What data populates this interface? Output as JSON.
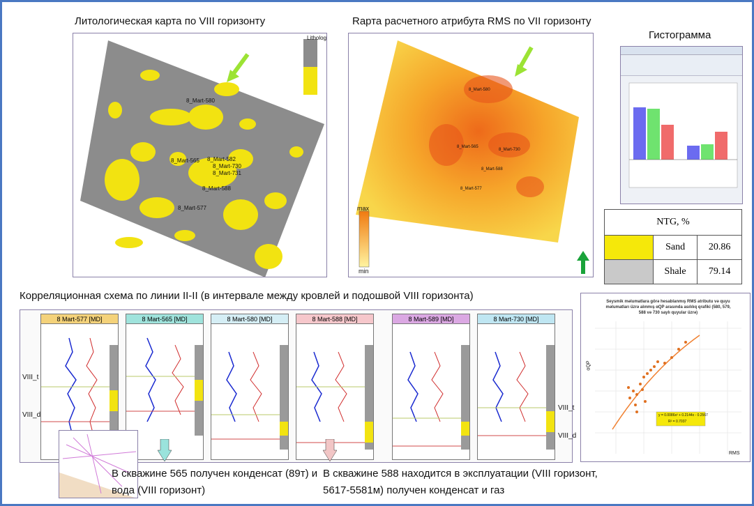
{
  "titles": {
    "lith_map": "Литологическая карта по VIII горизонту",
    "rms_map": "Rарта расчетного атрибута RMS по VII горизонту",
    "histogram": "Гистограмма",
    "correlation": "Корреляционная схема по линии II-II (в интервале между кровлей и подошвой VIII горизонта)"
  },
  "lith_map": {
    "legend_title": "Lithology",
    "wells": [
      "8_Mart-580",
      "8_Mart-565",
      "8_Mart-582",
      "8_Mart-730",
      "8_Mart-731",
      "8_Mart-588",
      "8_Mart-577"
    ]
  },
  "rms_map": {
    "colorbar_max": "max",
    "colorbar_min": "min",
    "wells": [
      "8_Mart-580",
      "8_Mart-565",
      "8_Mart-730",
      "8_Mart-588",
      "8_Mart-577"
    ]
  },
  "ntg_table": {
    "header": "NTG, %",
    "rows": [
      {
        "label": "Sand",
        "value": "20.86",
        "color": "#f5e80a"
      },
      {
        "label": "Shale",
        "value": "79.14",
        "color": "#c9c9c9"
      }
    ]
  },
  "wells_panel": [
    {
      "name": "8 Mart-577 [MD]",
      "color": "#f4d27a"
    },
    {
      "name": "8 Mart-565 [MD]",
      "color": "#9fe3dc"
    },
    {
      "name": "8 Mart-580 [MD]",
      "color": "#d5eef5"
    },
    {
      "name": "8 Mart-588 [MD]",
      "color": "#f6c7cb"
    },
    {
      "name": "8 Mart-589 [MD]",
      "color": "#dba8e3"
    },
    {
      "name": "8 Mart-730 [MD]",
      "color": "#bfe6f2"
    }
  ],
  "horizon_labels": {
    "top": "VIII_t",
    "bottom": "VIII_d"
  },
  "scatter": {
    "title": "Seysmik məlumatlara görə hesablanmış RMS atributu və quyu məlumatları üzrə alınmış αQP arasında asılılıq qrafiki (580, 579, 588 və 730 saylı quyular üzrə)",
    "equation": "y = 0.0086x² + 0.2144x - 0.2567",
    "r2": "R² = 0.7037",
    "xlabel": "RMS",
    "ylabel": "αQP"
  },
  "captions": {
    "left": "В скважине 565 получен конденсат (89т) и вода (VIII горизонт)",
    "right": "В скважине 588 находится в эксплуатации (VIII горизонт, 5617-5581м) получен конденсат и газ"
  }
}
